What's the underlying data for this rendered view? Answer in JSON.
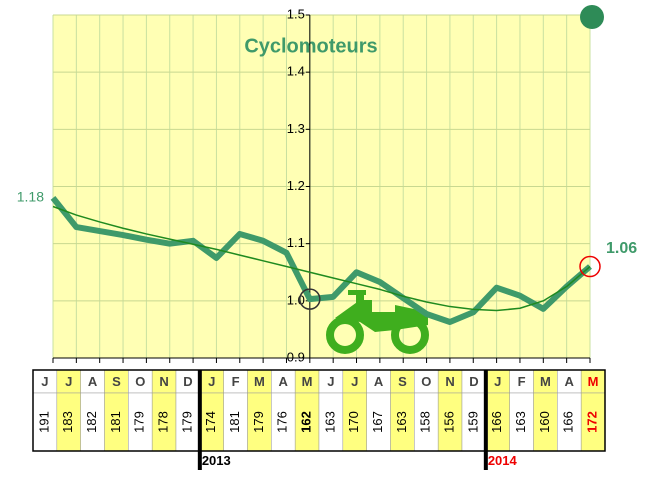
{
  "chart_data": {
    "type": "line",
    "title": "Cyclomoteurs",
    "categories": [
      "J",
      "J",
      "A",
      "S",
      "O",
      "N",
      "D",
      "J",
      "F",
      "M",
      "A",
      "M",
      "J",
      "J",
      "A",
      "S",
      "O",
      "N",
      "D",
      "J",
      "F",
      "M",
      "A",
      "M"
    ],
    "series": [
      {
        "color": "#3f9a6a",
        "values": [
          1.18,
          1.129,
          1.122,
          1.115,
          1.107,
          1.1,
          1.105,
          1.075,
          1.117,
          1.105,
          1.084,
          1.003,
          1.007,
          1.05,
          1.033,
          1.005,
          0.977,
          0.963,
          0.98,
          1.023,
          1.009,
          0.986,
          1.025,
          1.06
        ]
      },
      {
        "color": "#1f8a1f",
        "values": [
          1.165,
          1.15,
          1.138,
          1.127,
          1.117,
          1.108,
          1.099,
          1.09,
          1.08,
          1.07,
          1.06,
          1.05,
          1.04,
          1.03,
          1.02,
          1.008,
          0.998,
          0.99,
          0.985,
          0.983,
          0.987,
          1.0,
          1.025,
          1.06
        ]
      }
    ],
    "ylim": [
      0.9,
      1.5
    ],
    "yticks": [
      0.9,
      {
        "value": 1,
        "label": "1.0"
      },
      1.1,
      1.2,
      1.3,
      1.4,
      1.5
    ],
    "grid": true
  },
  "table": {
    "counts": [
      191,
      183,
      182,
      181,
      179,
      178,
      179,
      174,
      181,
      179,
      176,
      162,
      163,
      170,
      167,
      163,
      158,
      156,
      159,
      166,
      163,
      160,
      166,
      172
    ],
    "years": [
      null,
      null,
      null,
      null,
      null,
      null,
      null,
      "2013",
      null,
      null,
      null,
      null,
      null,
      null,
      null,
      null,
      null,
      null,
      null,
      "2014",
      null,
      null,
      null,
      null
    ]
  }
}
